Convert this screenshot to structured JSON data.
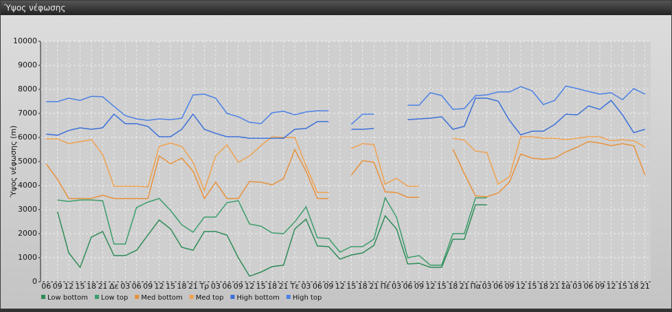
{
  "chart_data": {
    "type": "line",
    "title": "Ύψος νέφωσης",
    "y_label": "Ύψος νέφωσης (m)",
    "categories": [
      "06",
      "09",
      "12",
      "15",
      "18",
      "21",
      "Δε",
      "03",
      "06",
      "09",
      "12",
      "15",
      "18",
      "21",
      "Τρ",
      "03",
      "06",
      "09",
      "12",
      "15",
      "18",
      "21",
      "Τε",
      "03",
      "06",
      "09",
      "12",
      "15",
      "18",
      "21",
      "Πέ",
      "03",
      "06",
      "09",
      "12",
      "15",
      "18",
      "21",
      "Πα",
      "03",
      "06",
      "09",
      "12",
      "15",
      "18",
      "21",
      "Σά",
      "03",
      "06",
      "09",
      "12",
      "15",
      "18",
      "21"
    ],
    "ylim": [
      0,
      10000
    ],
    "yticks": [
      0,
      1000,
      2000,
      3000,
      4000,
      5000,
      6000,
      7000,
      8000,
      9000,
      10000
    ],
    "grid": true,
    "series": [
      {
        "name": "Low bottom",
        "color": "#2e8b57",
        "values": [
          null,
          2910,
          1200,
          600,
          1860,
          2090,
          1090,
          1090,
          1310,
          1940,
          2570,
          2200,
          1430,
          1310,
          2090,
          2090,
          1940,
          1000,
          230,
          400,
          630,
          690,
          2200,
          2600,
          1490,
          1460,
          940,
          1110,
          1200,
          1510,
          2740,
          2200,
          740,
          770,
          600,
          600,
          1770,
          1770,
          3200,
          3200,
          null,
          null,
          null,
          null,
          null,
          null,
          null,
          null,
          null,
          null,
          null,
          null,
          null,
          null
        ]
      },
      {
        "name": "Low top",
        "color": "#3a9d6a",
        "values": [
          null,
          3400,
          3340,
          3400,
          3400,
          3370,
          1570,
          1570,
          3090,
          3310,
          3460,
          2970,
          2370,
          2060,
          2690,
          2690,
          3290,
          3370,
          2400,
          2310,
          2030,
          2000,
          2490,
          3110,
          1830,
          1800,
          1230,
          1460,
          1460,
          1770,
          3490,
          2690,
          1000,
          1090,
          690,
          690,
          2000,
          2000,
          3490,
          3490,
          null,
          null,
          null,
          null,
          null,
          null,
          null,
          null,
          null,
          null,
          null,
          null,
          null,
          null
        ]
      },
      {
        "name": "Med bottom",
        "color": "#e8913a",
        "values": [
          4900,
          4260,
          3460,
          3460,
          3460,
          3600,
          3460,
          3460,
          3460,
          3460,
          5230,
          4910,
          5140,
          4600,
          3460,
          4140,
          3460,
          3460,
          4170,
          4140,
          4030,
          4290,
          5490,
          4600,
          3460,
          3460,
          null,
          4430,
          5030,
          4970,
          3740,
          3710,
          3510,
          3510,
          null,
          null,
          5510,
          4500,
          3570,
          3540,
          3690,
          4140,
          5310,
          5140,
          5090,
          5140,
          5400,
          5600,
          5830,
          5770,
          5660,
          5740,
          5660,
          4430
        ]
      },
      {
        "name": "Med top",
        "color": "#f0a24e",
        "values": [
          5940,
          5940,
          5740,
          5830,
          5910,
          5290,
          3970,
          3970,
          3970,
          3940,
          5630,
          5770,
          5630,
          4970,
          3800,
          5230,
          5690,
          4970,
          5230,
          5660,
          6030,
          6000,
          6000,
          4830,
          3710,
          3710,
          null,
          5540,
          5740,
          5710,
          4060,
          4300,
          3970,
          3970,
          null,
          null,
          5970,
          5890,
          5430,
          5370,
          4060,
          4370,
          6030,
          6030,
          5970,
          5970,
          5910,
          5970,
          6030,
          6030,
          5860,
          5910,
          5860,
          5600
        ]
      },
      {
        "name": "High bottom",
        "color": "#3a6fd8",
        "values": [
          6140,
          6090,
          6290,
          6400,
          6340,
          6400,
          6970,
          6570,
          6570,
          6460,
          6030,
          6030,
          6340,
          6970,
          6340,
          6170,
          6030,
          6030,
          5970,
          5970,
          5970,
          5970,
          6340,
          6370,
          6660,
          6660,
          null,
          6340,
          6340,
          6370,
          null,
          null,
          6740,
          6770,
          6800,
          6860,
          6340,
          6460,
          7630,
          7630,
          7510,
          6710,
          6110,
          6260,
          6260,
          6540,
          6970,
          6940,
          7310,
          7170,
          7540,
          6940,
          6200,
          6340
        ]
      },
      {
        "name": "High top",
        "color": "#4a80e6",
        "values": [
          7490,
          7490,
          7630,
          7540,
          7710,
          7690,
          7290,
          6910,
          6770,
          6710,
          6770,
          6740,
          6800,
          7770,
          7800,
          7630,
          7000,
          6860,
          6630,
          6570,
          7030,
          7090,
          6940,
          7060,
          7110,
          7110,
          null,
          6540,
          6970,
          6970,
          null,
          null,
          7340,
          7340,
          7860,
          7740,
          7170,
          7200,
          7740,
          7770,
          7890,
          7890,
          8110,
          7940,
          7370,
          7540,
          8140,
          8030,
          7910,
          7800,
          7860,
          7570,
          8030,
          7800
        ]
      }
    ]
  }
}
